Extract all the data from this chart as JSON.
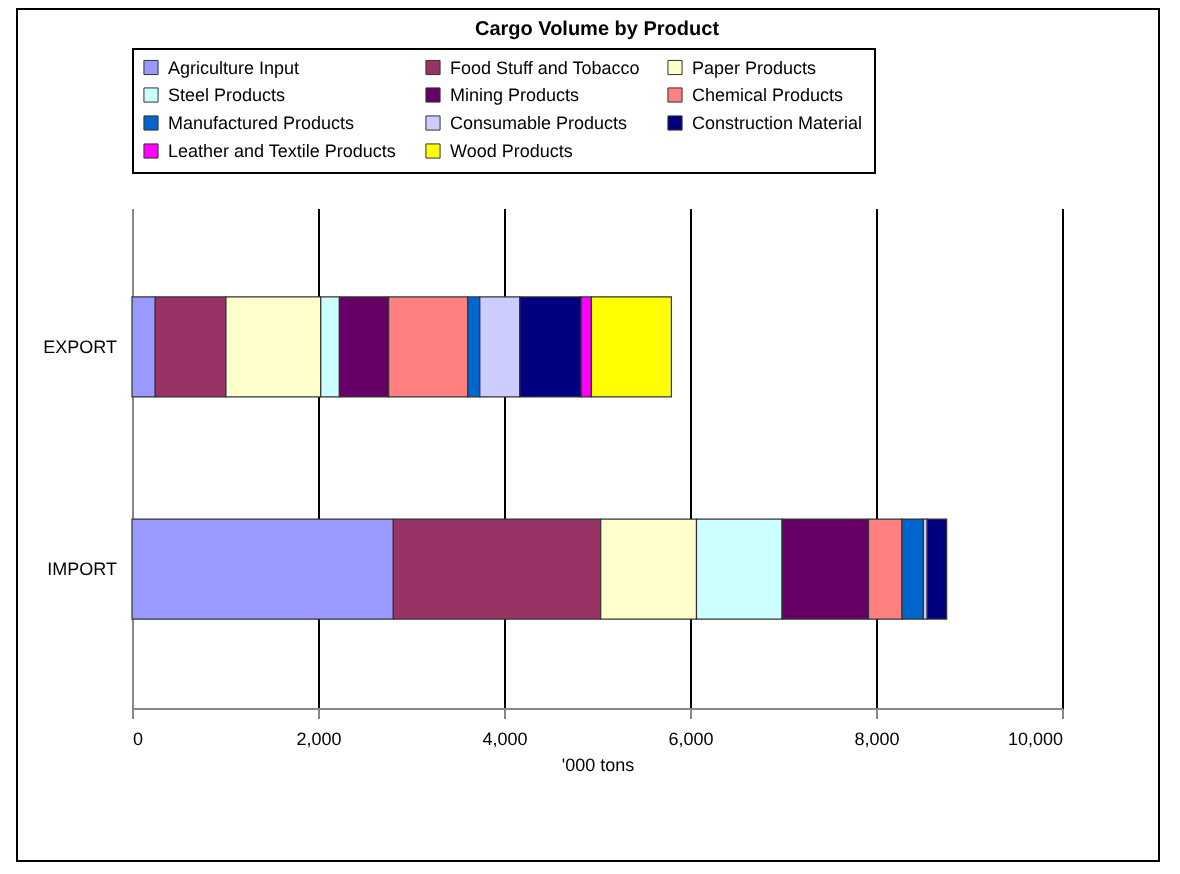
{
  "chart_data": {
    "type": "bar",
    "orientation": "horizontal",
    "stacked": true,
    "title": "Cargo Volume by Product",
    "xlabel": "'000 tons",
    "categories": [
      "EXPORT",
      "IMPORT"
    ],
    "xlim": [
      0,
      10000
    ],
    "xticks": [
      0,
      {
        "value": 2000,
        "label": "2,000"
      },
      {
        "value": 4000,
        "label": "4,000"
      },
      {
        "value": 6000,
        "label": "6,000"
      },
      {
        "value": 8000,
        "label": "8,000"
      },
      {
        "value": 10000,
        "label": "10,000"
      }
    ],
    "grid": "x",
    "legend": "top",
    "series": [
      {
        "name": "Agriculture Input",
        "color": "#9999ff",
        "values": [
          250,
          2810
        ]
      },
      {
        "name": "Food Stuff and Tobacco",
        "color": "#993366",
        "values": [
          760,
          2230
        ]
      },
      {
        "name": "Paper Products",
        "color": "#ffffcc",
        "values": [
          1020,
          1030
        ]
      },
      {
        "name": "Steel Products",
        "color": "#ccffff",
        "values": [
          200,
          920
        ]
      },
      {
        "name": "Mining Products",
        "color": "#660066",
        "values": [
          530,
          930
        ]
      },
      {
        "name": "Chemical Products",
        "color": "#ff8080",
        "values": [
          850,
          360
        ]
      },
      {
        "name": "Manufactured Products",
        "color": "#0066cc",
        "values": [
          130,
          230
        ]
      },
      {
        "name": "Consumable Products",
        "color": "#ccccff",
        "values": [
          430,
          40
        ]
      },
      {
        "name": "Construction Material",
        "color": "#000080",
        "values": [
          660,
          210
        ]
      },
      {
        "name": "Leather and Textile Products",
        "color": "#ff00ff",
        "values": [
          110,
          null
        ]
      },
      {
        "name": "Wood Products",
        "color": "#ffff00",
        "values": [
          860,
          null
        ]
      }
    ]
  }
}
